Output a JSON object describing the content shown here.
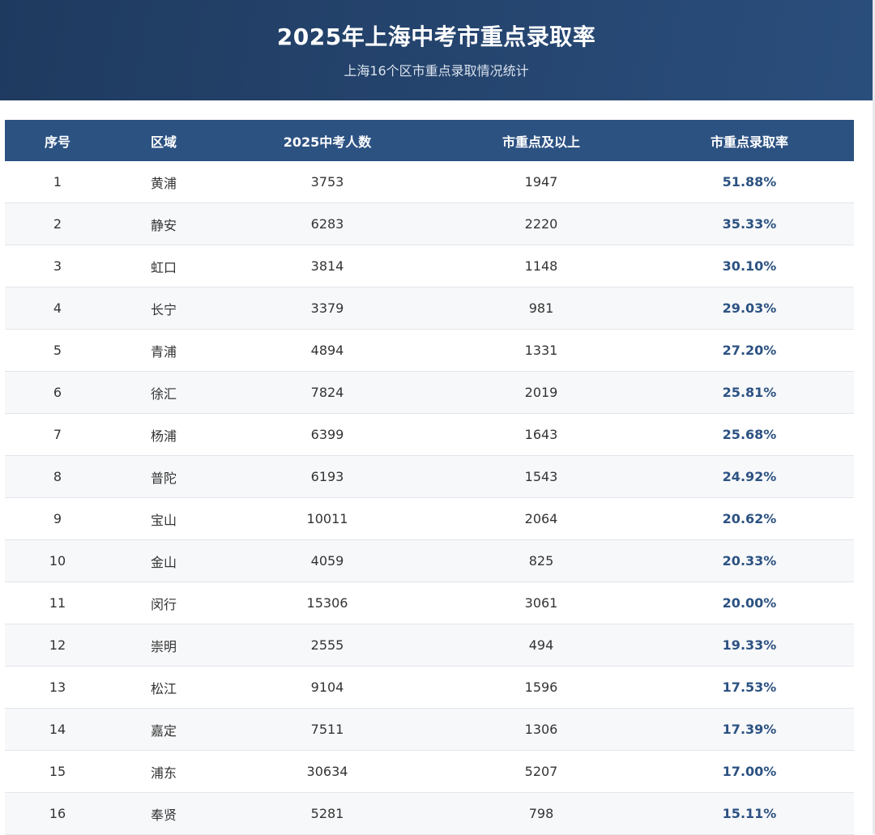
{
  "header": {
    "title": "2025年上海中考市重点录取率",
    "subtitle": "上海16个区市重点录取情况统计"
  },
  "table": {
    "columns": [
      "序号",
      "区域",
      "2025中考人数",
      "市重点及以上",
      "市重点录取率"
    ],
    "rows": [
      [
        "1",
        "黄浦",
        "3753",
        "1947",
        "51.88%"
      ],
      [
        "2",
        "静安",
        "6283",
        "2220",
        "35.33%"
      ],
      [
        "3",
        "虹口",
        "3814",
        "1148",
        "30.10%"
      ],
      [
        "4",
        "长宁",
        "3379",
        "981",
        "29.03%"
      ],
      [
        "5",
        "青浦",
        "4894",
        "1331",
        "27.20%"
      ],
      [
        "6",
        "徐汇",
        "7824",
        "2019",
        "25.81%"
      ],
      [
        "7",
        "杨浦",
        "6399",
        "1643",
        "25.68%"
      ],
      [
        "8",
        "普陀",
        "6193",
        "1543",
        "24.92%"
      ],
      [
        "9",
        "宝山",
        "10011",
        "2064",
        "20.62%"
      ],
      [
        "10",
        "金山",
        "4059",
        "825",
        "20.33%"
      ],
      [
        "11",
        "闵行",
        "15306",
        "3061",
        "20.00%"
      ],
      [
        "12",
        "崇明",
        "2555",
        "494",
        "19.33%"
      ],
      [
        "13",
        "松江",
        "9104",
        "1596",
        "17.53%"
      ],
      [
        "14",
        "嘉定",
        "7511",
        "1306",
        "17.39%"
      ],
      [
        "15",
        "浦东",
        "30634",
        "5207",
        "17.00%"
      ],
      [
        "16",
        "奉贤",
        "5281",
        "798",
        "15.11%"
      ]
    ]
  }
}
